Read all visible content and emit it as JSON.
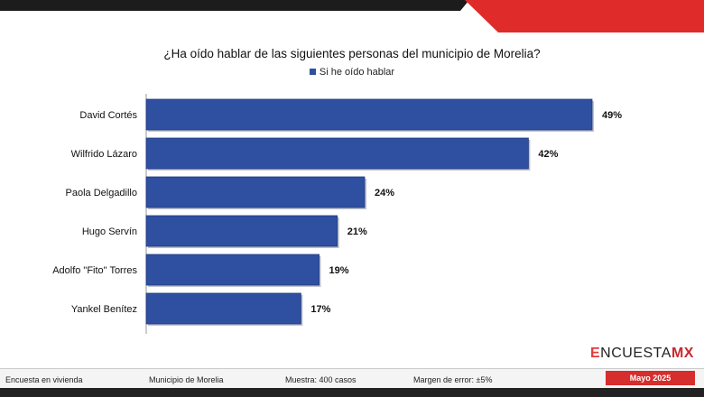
{
  "chart_data": {
    "type": "bar",
    "orientation": "horizontal",
    "title": "¿Ha oído hablar de las siguientes personas del municipio de Morelia?",
    "legend": "Si he oído hablar",
    "categories": [
      "David Cortés",
      "Wilfrido Lázaro",
      "Paola Delgadillo",
      "Hugo Servín",
      "Adolfo \"Fito\" Torres",
      "Yankel Benítez"
    ],
    "series": [
      {
        "name": "Si he oído hablar",
        "values": [
          49,
          42,
          24,
          21,
          19,
          17
        ]
      }
    ],
    "labels": [
      "49%",
      "42%",
      "24%",
      "21%",
      "19%",
      "17%"
    ],
    "xlim": [
      0,
      50
    ],
    "bar_color": "#2f4fa0",
    "grid": false
  },
  "brand": {
    "prefix": "E",
    "main": "NCUESTA",
    "suffix": "MX"
  },
  "footer": {
    "method": "Encuesta en vivienda",
    "place": "Municipio de Morelia",
    "sample": "Muestra: 400 casos",
    "error": "Margen de error: ±5%",
    "date": "Mayo 2025"
  },
  "colors": {
    "accent_red": "#e02b2b",
    "dark": "#1c1c1c"
  }
}
